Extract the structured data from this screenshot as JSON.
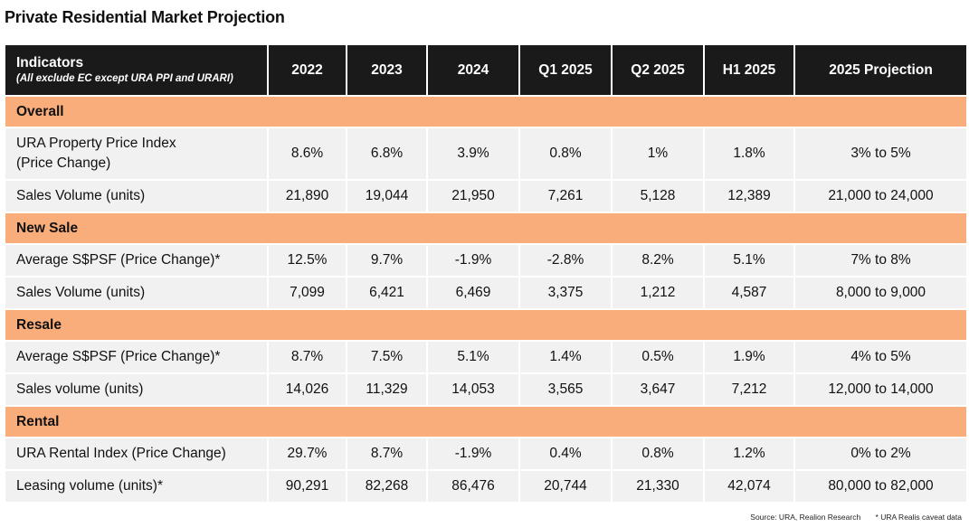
{
  "title": "Private Residential Market Projection",
  "header": {
    "indicators": "Indicators",
    "indicators_note": "All exclude EC except URA PPI and URARI",
    "columns": [
      "2022",
      "2023",
      "2024",
      "Q1 2025",
      "Q2 2025",
      "H1 2025",
      "2025 Projection"
    ]
  },
  "sections": [
    {
      "name": "Overall",
      "rows": [
        {
          "label": "URA Property Price Index",
          "label2": "(Price Change)",
          "values": [
            "8.6%",
            "6.8%",
            "3.9%",
            "0.8%",
            "1%",
            "1.8%",
            "3% to 5%"
          ]
        },
        {
          "label": "Sales Volume (units)",
          "values": [
            "21,890",
            "19,044",
            "21,950",
            "7,261",
            "5,128",
            "12,389",
            "21,000 to 24,000"
          ]
        }
      ]
    },
    {
      "name": "New Sale",
      "rows": [
        {
          "label": "Average S$PSF (Price Change)*",
          "values": [
            "12.5%",
            "9.7%",
            "-1.9%",
            "-2.8%",
            "8.2%",
            "5.1%",
            "7% to 8%"
          ]
        },
        {
          "label": "Sales Volume (units)",
          "values": [
            "7,099",
            "6,421",
            "6,469",
            "3,375",
            "1,212",
            "4,587",
            "8,000 to 9,000"
          ]
        }
      ]
    },
    {
      "name": "Resale",
      "rows": [
        {
          "label": "Average S$PSF (Price Change)*",
          "values": [
            "8.7%",
            "7.5%",
            "5.1%",
            "1.4%",
            "0.5%",
            "1.9%",
            "4% to 5%"
          ]
        },
        {
          "label": "Sales volume (units)",
          "values": [
            "14,026",
            "11,329",
            "14,053",
            "3,565",
            "3,647",
            "7,212",
            "12,000 to 14,000"
          ]
        }
      ]
    },
    {
      "name": "Rental",
      "rows": [
        {
          "label": "URA Rental Index (Price Change)",
          "values": [
            "29.7%",
            "8.7%",
            "-1.9%",
            "0.4%",
            "0.8%",
            "1.2%",
            "0% to 2%"
          ]
        },
        {
          "label": "Leasing volume (units)*",
          "values": [
            "90,291",
            "82,268",
            "86,476",
            "20,744",
            "21,330",
            "42,074",
            "80,000 to 82,000"
          ]
        }
      ]
    }
  ],
  "footer": {
    "source": "Source: URA, Realion Research",
    "note": "* URA Realis caveat data"
  }
}
